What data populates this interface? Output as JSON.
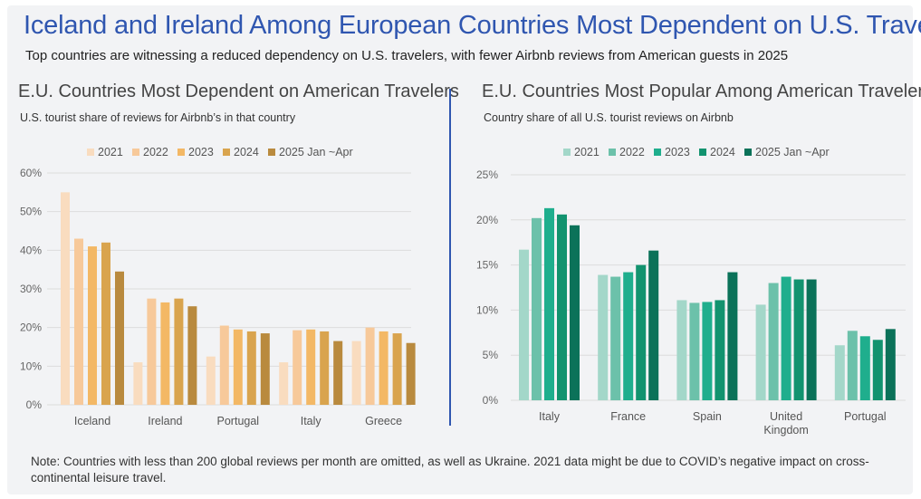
{
  "title": "Iceland and Ireland Among European Countries Most Dependent on U.S. Travel",
  "subtitle": "Top countries are witnessing a reduced dependency on U.S. travelers, with fewer Airbnb reviews from American guests in 2025",
  "note": "Note: Countries with less than 200 global reviews per month are omitted, as well as Ukraine. 2021 data might be due to COVID’s negative impact on cross-continental leisure travel.",
  "chart_data": [
    {
      "type": "bar",
      "title": "E.U. Countries Most Dependent on American Travelers",
      "subtitle": "U.S. tourist share of reviews for Airbnb’s in that country",
      "categories": [
        "Iceland",
        "Ireland",
        "Portugal",
        "Italy",
        "Greece"
      ],
      "series": [
        {
          "name": "2021",
          "color": "#f9dcbf",
          "values": [
            55,
            11,
            12.5,
            11,
            16.5
          ]
        },
        {
          "name": "2022",
          "color": "#f7c99a",
          "values": [
            43,
            27.5,
            20.5,
            19.3,
            20
          ]
        },
        {
          "name": "2023",
          "color": "#f3b865",
          "values": [
            41,
            26.5,
            19.5,
            19.5,
            19
          ]
        },
        {
          "name": "2024",
          "color": "#d9a44e",
          "values": [
            42,
            27.5,
            19,
            19,
            18.5
          ]
        },
        {
          "name": "2025 Jan ~Apr",
          "color": "#b98a3e",
          "values": [
            34.5,
            25.5,
            18.5,
            16.5,
            16
          ]
        }
      ],
      "ylim": [
        0,
        60
      ],
      "yticks": [
        "0%",
        "10%",
        "20%",
        "30%",
        "40%",
        "50%",
        "60%"
      ],
      "xlabel": "",
      "ylabel": "",
      "grid": true,
      "legend": "top"
    },
    {
      "type": "bar",
      "title": "E.U. Countries Most Popular Among American Travelers",
      "subtitle": "Country share of all U.S. tourist reviews on Airbnb",
      "categories": [
        "Italy",
        "France",
        "Spain",
        "United Kingdom",
        "Portugal"
      ],
      "category_lines": [
        [
          "Italy"
        ],
        [
          "France"
        ],
        [
          "Spain"
        ],
        [
          "United",
          "Kingdom"
        ],
        [
          "Portugal"
        ]
      ],
      "series": [
        {
          "name": "2021",
          "color": "#a3d7c9",
          "values": [
            16.7,
            13.9,
            11.1,
            10.6,
            6.1
          ]
        },
        {
          "name": "2022",
          "color": "#6cc1aa",
          "values": [
            20.2,
            13.7,
            10.8,
            13.0,
            7.7
          ]
        },
        {
          "name": "2023",
          "color": "#1fae8d",
          "values": [
            21.3,
            14.2,
            10.9,
            13.7,
            7.1
          ]
        },
        {
          "name": "2024",
          "color": "#12936f",
          "values": [
            20.6,
            15.0,
            11.1,
            13.4,
            6.7
          ]
        },
        {
          "name": "2025 Jan ~Apr",
          "color": "#0b7259",
          "values": [
            19.4,
            16.6,
            14.2,
            13.4,
            7.9
          ]
        }
      ],
      "ylim": [
        0,
        25
      ],
      "yticks": [
        "0%",
        "5%",
        "10%",
        "15%",
        "20%",
        "25%"
      ],
      "xlabel": "",
      "ylabel": "",
      "grid": true,
      "legend": "top"
    }
  ]
}
